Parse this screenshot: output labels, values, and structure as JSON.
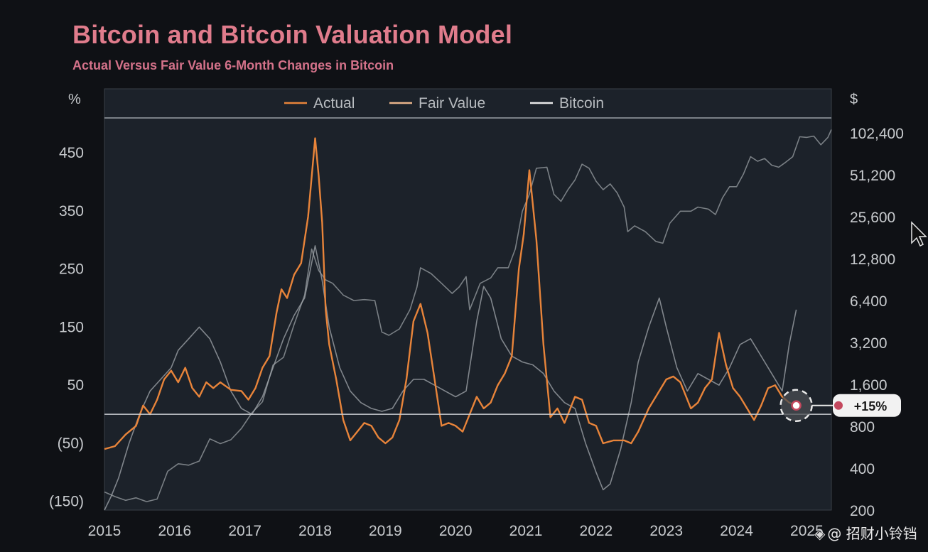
{
  "title": "Bitcoin and Bitcoin Valuation Model",
  "subtitle": "Actual Versus Fair Value 6-Month Changes in Bitcoin",
  "watermark": "@ 招财小铃铛",
  "callout_label": "+15%",
  "colors": {
    "background": "#0f1115",
    "plot_bg": "#1c222a",
    "actual": "#e8843a",
    "fair_value": "#a3a8ad",
    "bitcoin": "#8b9095",
    "title": "#e07c8c",
    "callout": "#c4485e"
  },
  "chart_data": {
    "type": "line",
    "title": "Bitcoin and Bitcoin Valuation Model",
    "subtitle": "Actual Versus Fair Value 6-Month Changes in Bitcoin",
    "legend": {
      "position": "top",
      "entries": [
        "Actual",
        "Fair Value",
        "Bitcoin"
      ]
    },
    "left_axis": {
      "unit": "%",
      "ticks": [
        450,
        350,
        250,
        150,
        50,
        -50,
        -150
      ],
      "tick_labels": [
        "450",
        "350",
        "250",
        "150",
        "50",
        "(50)",
        "(150)"
      ],
      "range": [
        -165,
        510
      ]
    },
    "right_axis": {
      "unit": "$",
      "scale": "log2",
      "ticks": [
        102400,
        51200,
        25600,
        12800,
        6400,
        3200,
        1600,
        800,
        400,
        200
      ],
      "tick_labels": [
        "102,400",
        "51,200",
        "25,600",
        "12,800",
        "6,400",
        "3,200",
        "1,600",
        "800",
        "400",
        "200"
      ],
      "range": [
        200,
        131000
      ]
    },
    "x_axis": {
      "ticks": [
        2015,
        2016,
        2017,
        2018,
        2019,
        2020,
        2021,
        2022,
        2023,
        2024,
        2025
      ],
      "tick_labels": [
        "2015",
        "2016",
        "2017",
        "2018",
        "2019",
        "2020",
        "2021",
        "2022",
        "2023",
        "2024",
        "2025"
      ],
      "range": [
        2015.0,
        2025.35
      ]
    },
    "zero_line": 0,
    "series": [
      {
        "name": "Actual",
        "axis": "left",
        "points": [
          [
            2015.0,
            -60
          ],
          [
            2015.15,
            -55
          ],
          [
            2015.3,
            -35
          ],
          [
            2015.45,
            -20
          ],
          [
            2015.55,
            15
          ],
          [
            2015.65,
            0
          ],
          [
            2015.75,
            25
          ],
          [
            2015.85,
            60
          ],
          [
            2015.95,
            75
          ],
          [
            2016.05,
            55
          ],
          [
            2016.15,
            80
          ],
          [
            2016.25,
            45
          ],
          [
            2016.35,
            30
          ],
          [
            2016.45,
            55
          ],
          [
            2016.55,
            45
          ],
          [
            2016.65,
            55
          ],
          [
            2016.8,
            42
          ],
          [
            2016.95,
            40
          ],
          [
            2017.05,
            25
          ],
          [
            2017.15,
            45
          ],
          [
            2017.25,
            80
          ],
          [
            2017.35,
            100
          ],
          [
            2017.45,
            175
          ],
          [
            2017.52,
            215
          ],
          [
            2017.6,
            200
          ],
          [
            2017.7,
            240
          ],
          [
            2017.8,
            260
          ],
          [
            2017.9,
            340
          ],
          [
            2018.0,
            475
          ],
          [
            2018.05,
            410
          ],
          [
            2018.1,
            330
          ],
          [
            2018.15,
            180
          ],
          [
            2018.2,
            120
          ],
          [
            2018.3,
            60
          ],
          [
            2018.4,
            -10
          ],
          [
            2018.5,
            -45
          ],
          [
            2018.6,
            -30
          ],
          [
            2018.7,
            -15
          ],
          [
            2018.8,
            -20
          ],
          [
            2018.9,
            -40
          ],
          [
            2019.0,
            -50
          ],
          [
            2019.1,
            -40
          ],
          [
            2019.2,
            -10
          ],
          [
            2019.3,
            60
          ],
          [
            2019.4,
            160
          ],
          [
            2019.5,
            190
          ],
          [
            2019.6,
            140
          ],
          [
            2019.7,
            60
          ],
          [
            2019.8,
            -20
          ],
          [
            2019.9,
            -15
          ],
          [
            2020.0,
            -20
          ],
          [
            2020.1,
            -30
          ],
          [
            2020.2,
            0
          ],
          [
            2020.3,
            30
          ],
          [
            2020.4,
            10
          ],
          [
            2020.5,
            20
          ],
          [
            2020.6,
            50
          ],
          [
            2020.7,
            70
          ],
          [
            2020.8,
            100
          ],
          [
            2020.9,
            250
          ],
          [
            2020.97,
            310
          ],
          [
            2021.05,
            420
          ],
          [
            2021.15,
            300
          ],
          [
            2021.25,
            120
          ],
          [
            2021.35,
            -5
          ],
          [
            2021.45,
            10
          ],
          [
            2021.55,
            -15
          ],
          [
            2021.7,
            30
          ],
          [
            2021.8,
            25
          ],
          [
            2021.9,
            -15
          ],
          [
            2022.0,
            -20
          ],
          [
            2022.1,
            -50
          ],
          [
            2022.25,
            -45
          ],
          [
            2022.4,
            -45
          ],
          [
            2022.5,
            -50
          ],
          [
            2022.6,
            -30
          ],
          [
            2022.75,
            10
          ],
          [
            2022.9,
            40
          ],
          [
            2023.0,
            60
          ],
          [
            2023.1,
            65
          ],
          [
            2023.2,
            55
          ],
          [
            2023.35,
            10
          ],
          [
            2023.45,
            20
          ],
          [
            2023.55,
            45
          ],
          [
            2023.65,
            60
          ],
          [
            2023.75,
            140
          ],
          [
            2023.85,
            85
          ],
          [
            2023.95,
            45
          ],
          [
            2024.05,
            30
          ],
          [
            2024.15,
            10
          ],
          [
            2024.25,
            -10
          ],
          [
            2024.35,
            15
          ],
          [
            2024.45,
            45
          ],
          [
            2024.55,
            50
          ],
          [
            2024.65,
            30
          ],
          [
            2024.75,
            20
          ],
          [
            2024.85,
            15
          ]
        ]
      },
      {
        "name": "Fair Value",
        "axis": "left",
        "points": [
          [
            2015.0,
            -165
          ],
          [
            2015.1,
            -140
          ],
          [
            2015.2,
            -110
          ],
          [
            2015.35,
            -50
          ],
          [
            2015.5,
            0
          ],
          [
            2015.65,
            40
          ],
          [
            2015.8,
            60
          ],
          [
            2015.95,
            80
          ],
          [
            2016.05,
            110
          ],
          [
            2016.2,
            130
          ],
          [
            2016.35,
            150
          ],
          [
            2016.5,
            130
          ],
          [
            2016.65,
            90
          ],
          [
            2016.8,
            40
          ],
          [
            2016.95,
            10
          ],
          [
            2017.1,
            0
          ],
          [
            2017.25,
            30
          ],
          [
            2017.4,
            80
          ],
          [
            2017.55,
            130
          ],
          [
            2017.7,
            170
          ],
          [
            2017.85,
            200
          ],
          [
            2018.0,
            290
          ],
          [
            2018.1,
            230
          ],
          [
            2018.2,
            150
          ],
          [
            2018.35,
            80
          ],
          [
            2018.5,
            40
          ],
          [
            2018.65,
            20
          ],
          [
            2018.8,
            10
          ],
          [
            2018.95,
            5
          ],
          [
            2019.1,
            10
          ],
          [
            2019.25,
            40
          ],
          [
            2019.4,
            60
          ],
          [
            2019.55,
            60
          ],
          [
            2019.7,
            50
          ],
          [
            2019.85,
            40
          ],
          [
            2020.0,
            30
          ],
          [
            2020.15,
            40
          ],
          [
            2020.3,
            160
          ],
          [
            2020.4,
            220
          ],
          [
            2020.5,
            200
          ],
          [
            2020.65,
            130
          ],
          [
            2020.8,
            100
          ],
          [
            2020.95,
            90
          ],
          [
            2021.1,
            85
          ],
          [
            2021.25,
            70
          ],
          [
            2021.4,
            40
          ],
          [
            2021.55,
            20
          ],
          [
            2021.7,
            10
          ],
          [
            2021.85,
            -50
          ],
          [
            2022.0,
            -100
          ],
          [
            2022.1,
            -130
          ],
          [
            2022.2,
            -120
          ],
          [
            2022.35,
            -60
          ],
          [
            2022.5,
            20
          ],
          [
            2022.6,
            90
          ],
          [
            2022.75,
            150
          ],
          [
            2022.9,
            200
          ],
          [
            2023.0,
            150
          ],
          [
            2023.15,
            80
          ],
          [
            2023.3,
            40
          ],
          [
            2023.45,
            70
          ],
          [
            2023.6,
            60
          ],
          [
            2023.75,
            50
          ],
          [
            2023.9,
            80
          ],
          [
            2024.05,
            120
          ],
          [
            2024.2,
            130
          ],
          [
            2024.35,
            100
          ],
          [
            2024.5,
            70
          ],
          [
            2024.65,
            40
          ],
          [
            2024.75,
            120
          ],
          [
            2024.85,
            180
          ]
        ]
      },
      {
        "name": "Bitcoin",
        "axis": "right",
        "points": [
          [
            2015.0,
            270
          ],
          [
            2015.15,
            250
          ],
          [
            2015.3,
            235
          ],
          [
            2015.45,
            245
          ],
          [
            2015.6,
            230
          ],
          [
            2015.75,
            240
          ],
          [
            2015.9,
            380
          ],
          [
            2016.05,
            430
          ],
          [
            2016.2,
            420
          ],
          [
            2016.35,
            450
          ],
          [
            2016.5,
            650
          ],
          [
            2016.65,
            600
          ],
          [
            2016.8,
            640
          ],
          [
            2016.95,
            770
          ],
          [
            2017.1,
            1000
          ],
          [
            2017.25,
            1200
          ],
          [
            2017.4,
            2200
          ],
          [
            2017.55,
            2500
          ],
          [
            2017.7,
            4300
          ],
          [
            2017.85,
            7000
          ],
          [
            2017.95,
            15000
          ],
          [
            2018.05,
            10500
          ],
          [
            2018.15,
            9000
          ],
          [
            2018.25,
            8500
          ],
          [
            2018.4,
            7000
          ],
          [
            2018.55,
            6400
          ],
          [
            2018.7,
            6500
          ],
          [
            2018.85,
            6400
          ],
          [
            2018.95,
            3800
          ],
          [
            2019.05,
            3600
          ],
          [
            2019.2,
            4000
          ],
          [
            2019.35,
            5500
          ],
          [
            2019.45,
            8000
          ],
          [
            2019.5,
            11000
          ],
          [
            2019.65,
            10000
          ],
          [
            2019.8,
            8500
          ],
          [
            2019.95,
            7200
          ],
          [
            2020.05,
            8000
          ],
          [
            2020.15,
            9500
          ],
          [
            2020.2,
            5500
          ],
          [
            2020.35,
            8500
          ],
          [
            2020.5,
            9300
          ],
          [
            2020.6,
            11000
          ],
          [
            2020.75,
            11000
          ],
          [
            2020.85,
            15000
          ],
          [
            2020.95,
            28000
          ],
          [
            2021.05,
            37000
          ],
          [
            2021.15,
            57000
          ],
          [
            2021.3,
            58000
          ],
          [
            2021.4,
            37000
          ],
          [
            2021.5,
            33000
          ],
          [
            2021.6,
            40000
          ],
          [
            2021.7,
            47000
          ],
          [
            2021.8,
            61000
          ],
          [
            2021.9,
            57000
          ],
          [
            2022.0,
            46000
          ],
          [
            2022.1,
            40000
          ],
          [
            2022.2,
            44000
          ],
          [
            2022.3,
            38000
          ],
          [
            2022.4,
            30000
          ],
          [
            2022.45,
            20000
          ],
          [
            2022.55,
            22000
          ],
          [
            2022.7,
            20000
          ],
          [
            2022.85,
            17000
          ],
          [
            2022.95,
            16500
          ],
          [
            2023.05,
            23000
          ],
          [
            2023.2,
            28000
          ],
          [
            2023.35,
            28000
          ],
          [
            2023.45,
            30000
          ],
          [
            2023.6,
            29000
          ],
          [
            2023.7,
            26500
          ],
          [
            2023.8,
            35000
          ],
          [
            2023.9,
            42000
          ],
          [
            2024.0,
            42000
          ],
          [
            2024.1,
            52000
          ],
          [
            2024.2,
            69000
          ],
          [
            2024.3,
            64000
          ],
          [
            2024.4,
            67000
          ],
          [
            2024.5,
            60000
          ],
          [
            2024.6,
            58000
          ],
          [
            2024.7,
            63000
          ],
          [
            2024.8,
            69000
          ],
          [
            2024.9,
            96000
          ],
          [
            2025.0,
            95000
          ],
          [
            2025.1,
            97000
          ],
          [
            2025.2,
            84000
          ],
          [
            2025.3,
            95000
          ],
          [
            2025.35,
            108000
          ]
        ]
      }
    ],
    "annotation": {
      "x": 2024.85,
      "y": 15,
      "label": "+15%"
    }
  }
}
